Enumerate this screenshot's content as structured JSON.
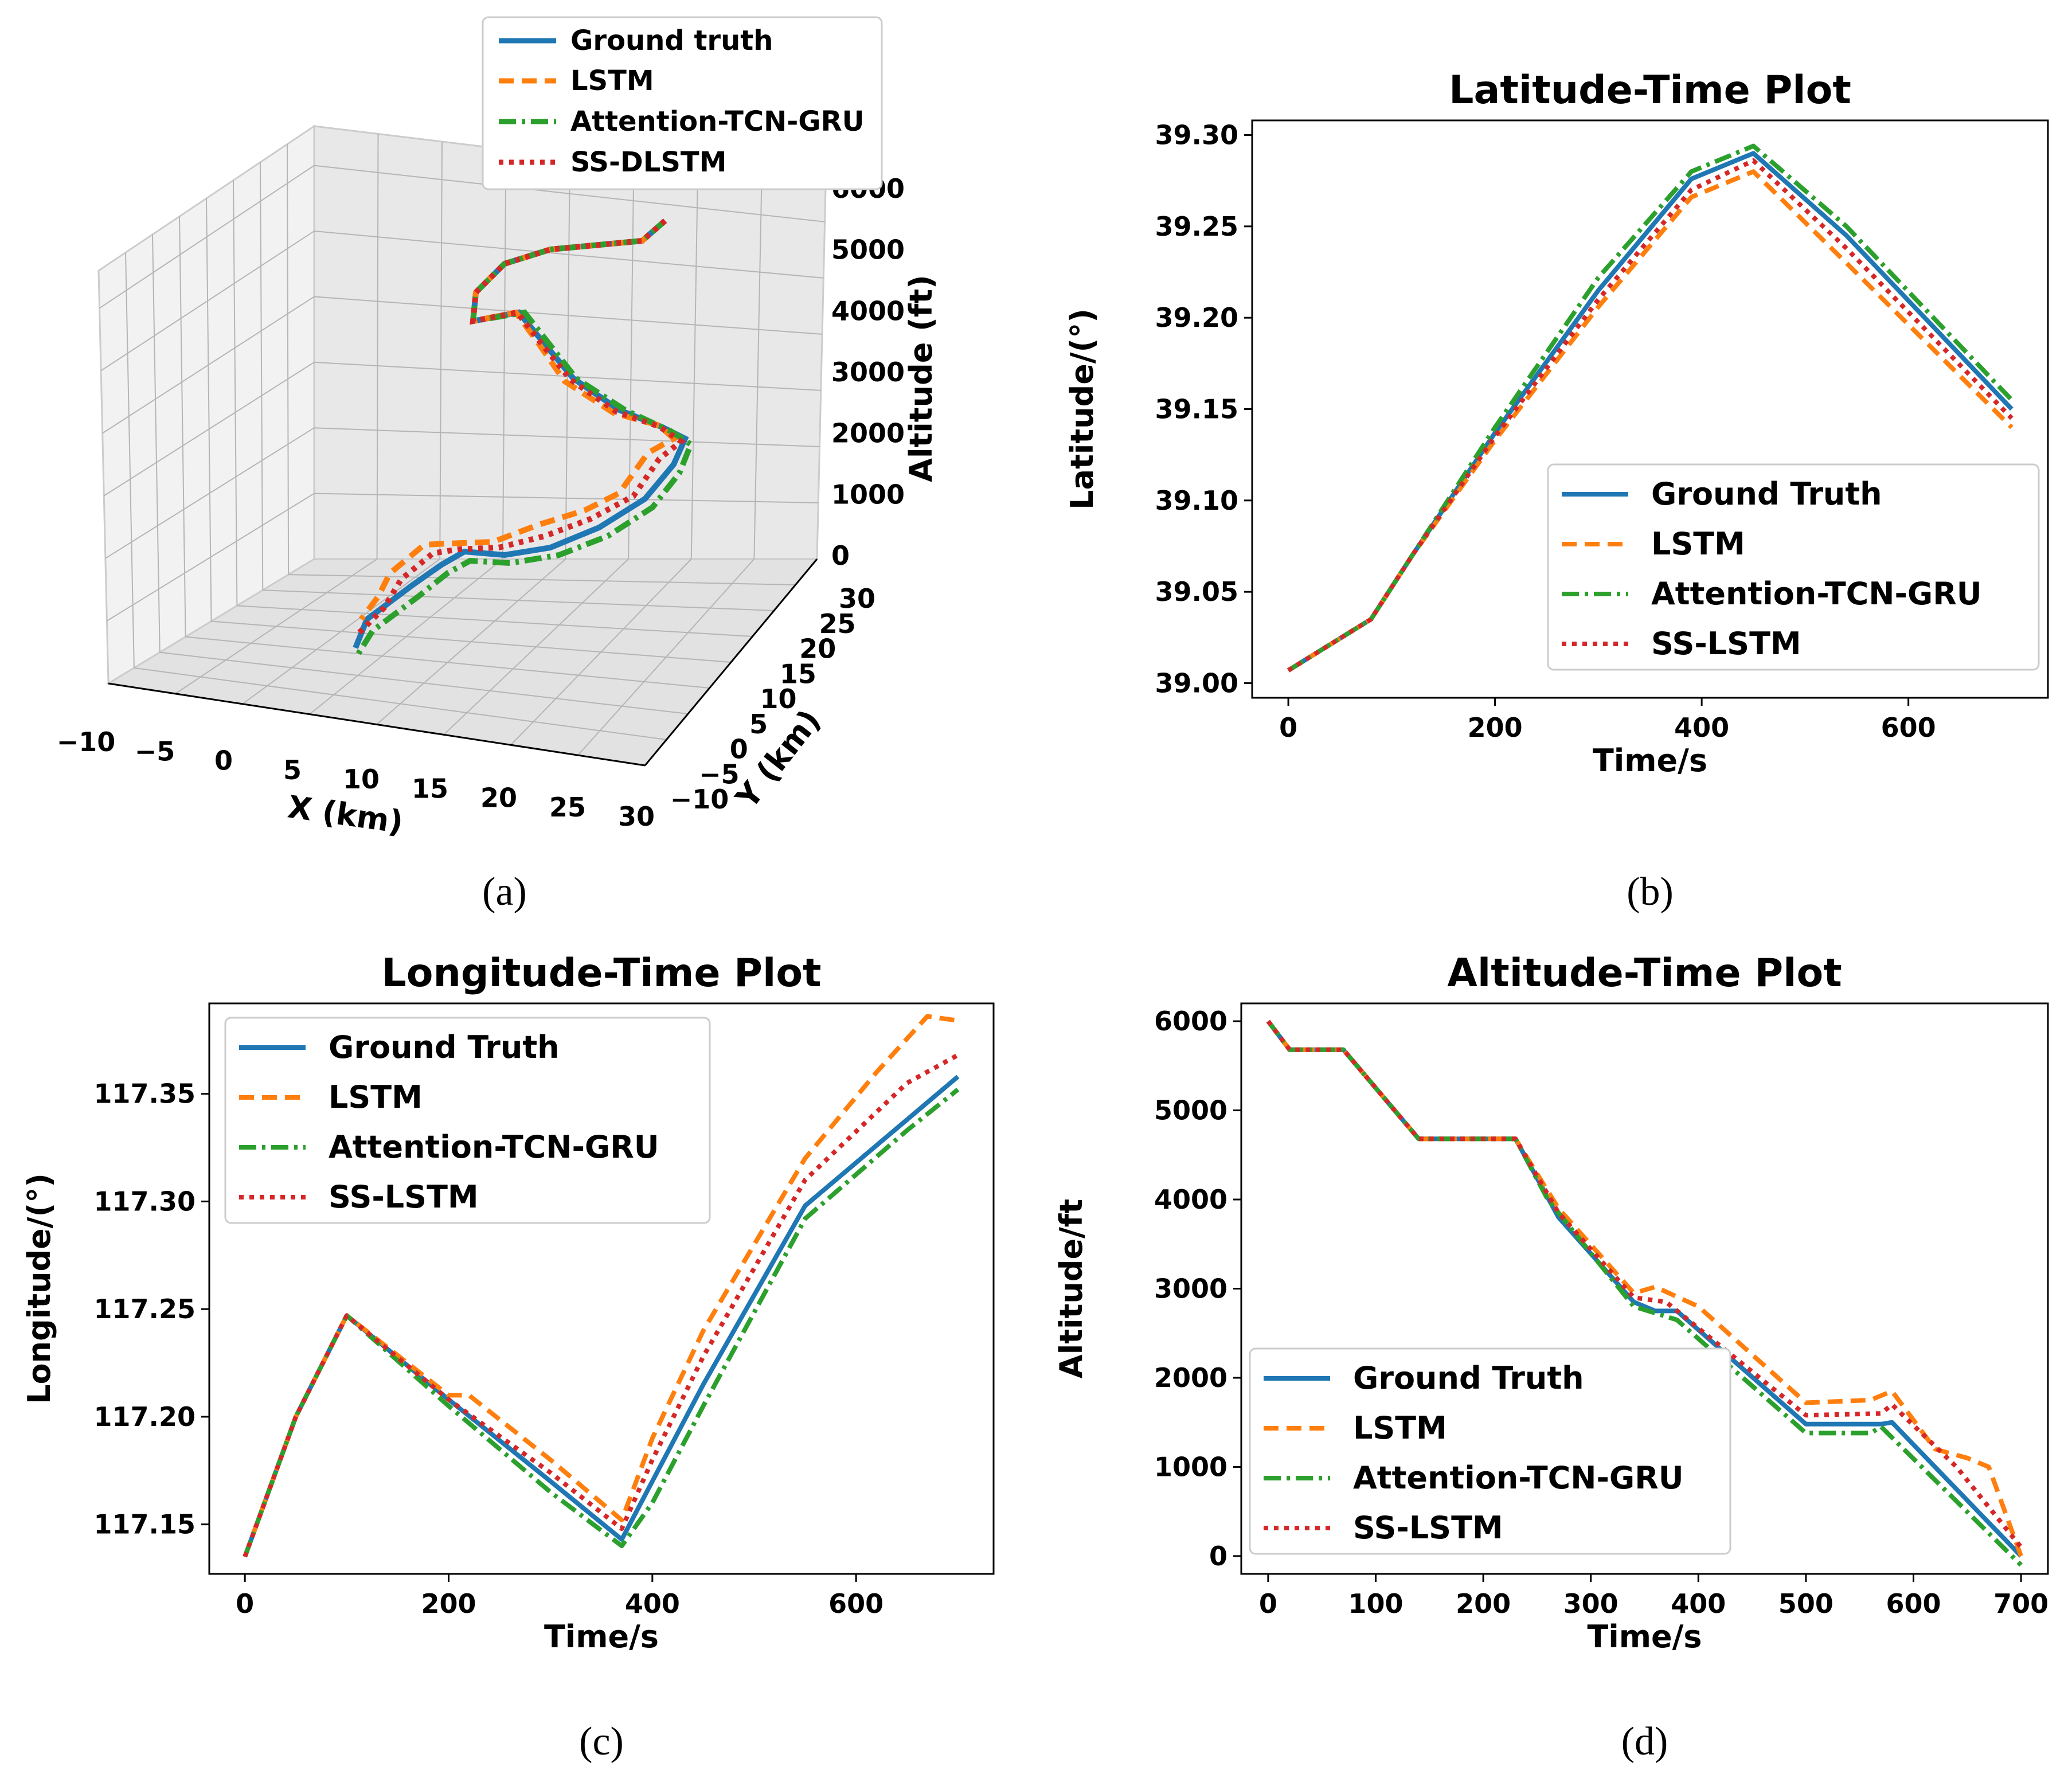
{
  "colors": {
    "ground_truth": "#1f77b4",
    "lstm": "#ff7f0e",
    "attn": "#2ca02c",
    "ss": "#d62728"
  },
  "chart_data": [
    {
      "id": "a",
      "type": "line",
      "caption": "(a)",
      "title": "",
      "xlabel": "X (km)",
      "ylabel": "Y (km)",
      "zlabel": "Altitude (ft)",
      "xticks": [
        "−10",
        "−5",
        "0",
        "5",
        "10",
        "15",
        "20",
        "25",
        "30"
      ],
      "yticks": [
        "−10",
        "−5",
        "0",
        "5",
        "10",
        "15",
        "20",
        "25",
        "30"
      ],
      "zticks": [
        "0",
        "1000",
        "2000",
        "3000",
        "4000",
        "5000",
        "6000"
      ],
      "xlim": [
        -10,
        30
      ],
      "ylim": [
        -10,
        30
      ],
      "zlim": [
        0,
        6000
      ],
      "legend": [
        "Ground truth",
        "LSTM",
        "Attention-TCN-GRU",
        "SS-DLSTM"
      ],
      "legend_loc": "top"
    },
    {
      "id": "b",
      "type": "line",
      "caption": "(b)",
      "title": "Latitude-Time Plot",
      "xlabel": "Time/s",
      "ylabel": "Latitude/(°)",
      "xlim": [
        -35,
        735
      ],
      "ylim": [
        38.992,
        39.308
      ],
      "xticks": [
        0,
        200,
        400,
        600
      ],
      "yticks": [
        39.0,
        39.05,
        39.1,
        39.15,
        39.2,
        39.25,
        39.3
      ],
      "xtick_labels": [
        "0",
        "200",
        "400",
        "600"
      ],
      "ytick_labels": [
        "39.00",
        "39.05",
        "39.10",
        "39.15",
        "39.20",
        "39.25",
        "39.30"
      ],
      "legend": [
        "Ground Truth",
        "LSTM",
        "Attention-TCN-GRU",
        "SS-LSTM"
      ],
      "legend_loc": "lower right",
      "series": [
        {
          "key": "gt",
          "values": [
            [
              0,
              39.007
            ],
            [
              80,
              39.035
            ],
            [
              120,
              39.07
            ],
            [
              200,
              39.137
            ],
            [
              300,
              39.215
            ],
            [
              390,
              39.276
            ],
            [
              450,
              39.29
            ],
            [
              540,
              39.245
            ],
            [
              700,
              39.15
            ]
          ]
        },
        {
          "key": "lstm",
          "values": [
            [
              0,
              39.007
            ],
            [
              80,
              39.035
            ],
            [
              120,
              39.07
            ],
            [
              200,
              39.133
            ],
            [
              300,
              39.206
            ],
            [
              390,
              39.266
            ],
            [
              450,
              39.28
            ],
            [
              540,
              39.23
            ],
            [
              700,
              39.14
            ]
          ]
        },
        {
          "key": "attn",
          "values": [
            [
              0,
              39.007
            ],
            [
              80,
              39.035
            ],
            [
              120,
              39.07
            ],
            [
              200,
              39.14
            ],
            [
              300,
              39.222
            ],
            [
              390,
              39.28
            ],
            [
              450,
              39.294
            ],
            [
              540,
              39.25
            ],
            [
              700,
              39.155
            ]
          ]
        },
        {
          "key": "ss",
          "values": [
            [
              0,
              39.007
            ],
            [
              80,
              39.035
            ],
            [
              120,
              39.07
            ],
            [
              200,
              39.135
            ],
            [
              300,
              39.21
            ],
            [
              390,
              39.27
            ],
            [
              450,
              39.286
            ],
            [
              540,
              39.238
            ],
            [
              700,
              39.145
            ]
          ]
        }
      ]
    },
    {
      "id": "c",
      "type": "line",
      "caption": "(c)",
      "title": "Longitude-Time Plot",
      "xlabel": "Time/s",
      "ylabel": "Longitude/(°)",
      "xlim": [
        -35,
        735
      ],
      "ylim": [
        117.127,
        117.392
      ],
      "xticks": [
        0,
        200,
        400,
        600
      ],
      "yticks": [
        117.15,
        117.2,
        117.25,
        117.3,
        117.35
      ],
      "xtick_labels": [
        "0",
        "200",
        "400",
        "600"
      ],
      "ytick_labels": [
        "117.15",
        "117.20",
        "117.25",
        "117.30",
        "117.35"
      ],
      "legend": [
        "Ground Truth",
        "LSTM",
        "Attention-TCN-GRU",
        "SS-LSTM"
      ],
      "legend_loc": "upper left",
      "series": [
        {
          "key": "gt",
          "values": [
            [
              0,
              117.135
            ],
            [
              50,
              117.2
            ],
            [
              100,
              117.247
            ],
            [
              200,
              117.208
            ],
            [
              300,
              117.17
            ],
            [
              370,
              117.143
            ],
            [
              400,
              117.17
            ],
            [
              450,
              117.215
            ],
            [
              550,
              117.298
            ],
            [
              650,
              117.338
            ],
            [
              700,
              117.358
            ]
          ]
        },
        {
          "key": "lstm",
          "values": [
            [
              0,
              117.135
            ],
            [
              50,
              117.2
            ],
            [
              100,
              117.247
            ],
            [
              200,
              117.21
            ],
            [
              220,
              117.21
            ],
            [
              300,
              117.18
            ],
            [
              370,
              117.152
            ],
            [
              400,
              117.19
            ],
            [
              450,
              117.24
            ],
            [
              550,
              117.32
            ],
            [
              620,
              117.36
            ],
            [
              670,
              117.386
            ],
            [
              700,
              117.384
            ]
          ]
        },
        {
          "key": "attn",
          "values": [
            [
              0,
              117.135
            ],
            [
              50,
              117.2
            ],
            [
              100,
              117.247
            ],
            [
              200,
              117.205
            ],
            [
              300,
              117.165
            ],
            [
              370,
              117.14
            ],
            [
              400,
              117.16
            ],
            [
              450,
              117.205
            ],
            [
              550,
              117.292
            ],
            [
              650,
              117.333
            ],
            [
              700,
              117.352
            ]
          ]
        },
        {
          "key": "ss",
          "values": [
            [
              0,
              117.135
            ],
            [
              50,
              117.2
            ],
            [
              100,
              117.247
            ],
            [
              200,
              117.208
            ],
            [
              300,
              117.174
            ],
            [
              370,
              117.148
            ],
            [
              400,
              117.18
            ],
            [
              450,
              117.228
            ],
            [
              550,
              117.31
            ],
            [
              650,
              117.355
            ],
            [
              700,
              117.368
            ]
          ]
        }
      ]
    },
    {
      "id": "d",
      "type": "line",
      "caption": "(d)",
      "title": "Altitude-Time Plot",
      "xlabel": "Time/s",
      "ylabel": "Altitude/ft",
      "xlim": [
        -25,
        725
      ],
      "ylim": [
        -200,
        6200
      ],
      "xticks": [
        0,
        100,
        200,
        300,
        400,
        500,
        600,
        700
      ],
      "yticks": [
        0,
        1000,
        2000,
        3000,
        4000,
        5000,
        6000
      ],
      "xtick_labels": [
        "0",
        "100",
        "200",
        "300",
        "400",
        "500",
        "600",
        "700"
      ],
      "ytick_labels": [
        "0",
        "1000",
        "2000",
        "3000",
        "4000",
        "5000",
        "6000"
      ],
      "legend": [
        "Ground Truth",
        "LSTM",
        "Attention-TCN-GRU",
        "SS-LSTM"
      ],
      "legend_loc": "lower left",
      "series": [
        {
          "key": "gt",
          "values": [
            [
              0,
              6000
            ],
            [
              20,
              5680
            ],
            [
              70,
              5680
            ],
            [
              140,
              4680
            ],
            [
              230,
              4680
            ],
            [
              270,
              3800
            ],
            [
              340,
              2850
            ],
            [
              360,
              2750
            ],
            [
              380,
              2750
            ],
            [
              500,
              1480
            ],
            [
              570,
              1480
            ],
            [
              580,
              1500
            ],
            [
              700,
              0
            ]
          ]
        },
        {
          "key": "lstm",
          "values": [
            [
              0,
              6000
            ],
            [
              20,
              5680
            ],
            [
              70,
              5680
            ],
            [
              140,
              4680
            ],
            [
              230,
              4680
            ],
            [
              270,
              3900
            ],
            [
              340,
              2950
            ],
            [
              360,
              3020
            ],
            [
              400,
              2800
            ],
            [
              500,
              1720
            ],
            [
              560,
              1750
            ],
            [
              580,
              1850
            ],
            [
              620,
              1200
            ],
            [
              650,
              1100
            ],
            [
              670,
              1000
            ],
            [
              700,
              0
            ]
          ]
        },
        {
          "key": "attn",
          "values": [
            [
              0,
              6000
            ],
            [
              20,
              5680
            ],
            [
              70,
              5680
            ],
            [
              140,
              4680
            ],
            [
              230,
              4680
            ],
            [
              260,
              4000
            ],
            [
              340,
              2800
            ],
            [
              380,
              2650
            ],
            [
              500,
              1380
            ],
            [
              560,
              1380
            ],
            [
              570,
              1450
            ],
            [
              700,
              -100
            ]
          ]
        },
        {
          "key": "ss",
          "values": [
            [
              0,
              6000
            ],
            [
              20,
              5680
            ],
            [
              70,
              5680
            ],
            [
              140,
              4680
            ],
            [
              230,
              4680
            ],
            [
              270,
              3850
            ],
            [
              340,
              2900
            ],
            [
              370,
              2850
            ],
            [
              500,
              1580
            ],
            [
              570,
              1600
            ],
            [
              580,
              1700
            ],
            [
              640,
              1000
            ],
            [
              700,
              100
            ]
          ]
        }
      ]
    }
  ]
}
